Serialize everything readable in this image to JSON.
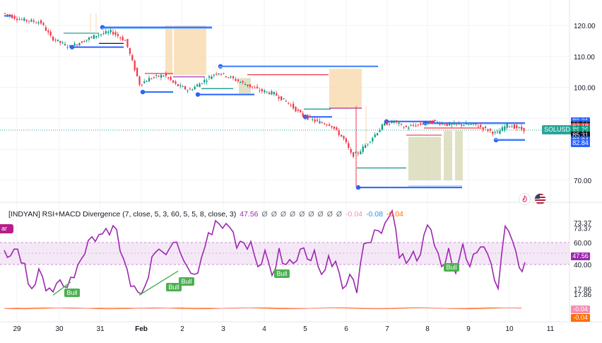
{
  "symbol": "SOLUSD",
  "price_axis": {
    "labels": [
      "120.00",
      "110.00",
      "100.00",
      "70.00"
    ],
    "label_values": [
      120,
      110,
      100,
      70
    ],
    "tags": [
      {
        "text": "89.01",
        "value": 89.01,
        "color": "#2962ff"
      },
      {
        "text": "89.01",
        "value": 88.2,
        "color": "#2962ff"
      },
      {
        "text": "88.62",
        "value": 87.6,
        "color": "#131722"
      },
      {
        "text": "87.18",
        "value": 87.18,
        "color": "#f23645"
      },
      {
        "text": "86.36",
        "value": 86.36,
        "color": "#089981"
      },
      {
        "text": "86.14",
        "value": 85.2,
        "color": "#089981"
      },
      {
        "text": "85.31",
        "value": 84.4,
        "color": "#131722"
      },
      {
        "text": "82.84",
        "value": 82.84,
        "color": "#2962ff"
      },
      {
        "text": "82.84",
        "value": 81.9,
        "color": "#2962ff"
      }
    ]
  },
  "indicator": {
    "name": "[INDYAN] RSI+MACD Divergence (7, close, 5, 3, 60, 5, 5, 8, close, 3)",
    "value": "47.56",
    "zeros": [
      "Ø",
      "Ø",
      "Ø",
      "Ø",
      "Ø",
      "Ø",
      "Ø",
      "Ø",
      "Ø"
    ],
    "neg1": "-0.04",
    "neg2": "-0.08",
    "neg3": "-0.04",
    "bar_tag": "ar",
    "axis_labels": [
      "73.37",
      "73.37",
      "60.00",
      "40.00",
      "17.86",
      "17.86"
    ],
    "axis_values": [
      78,
      73.37,
      60,
      40,
      17.86,
      13
    ],
    "tags": [
      {
        "text": "47.56",
        "value": 47.56,
        "color": "#9c27b0"
      },
      {
        "text": "-0.04",
        "value": -0.04,
        "color": "#f48fb1"
      },
      {
        "text": "-0.04",
        "value": -0.05,
        "color": "#ff6d00"
      }
    ],
    "band": [
      40,
      60
    ],
    "bull_labels": [
      "Bull",
      "Bull",
      "Bull",
      "Bull",
      "Bull"
    ]
  },
  "time_axis": {
    "labels": [
      "29",
      "30",
      "31",
      "Feb",
      "2",
      "3",
      "4",
      "5",
      "6",
      "7",
      "8",
      "9",
      "10",
      "11"
    ]
  },
  "colors": {
    "up": "#089981",
    "down": "#f23645",
    "rsi": "#9c27b0",
    "band_fill": "#f3e5f5",
    "level": "#2962ff",
    "zone": "#f8d7a8",
    "zone2": "#d5d6b0",
    "bull": "#4caf50"
  },
  "icons": [
    "tradingview-flame-icon",
    "us-flag-icon"
  ]
}
